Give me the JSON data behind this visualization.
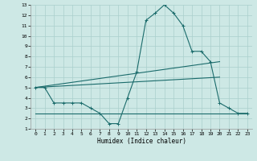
{
  "xlabel": "Humidex (Indice chaleur)",
  "background_color": "#cde8e5",
  "grid_color": "#aacfcc",
  "line_color": "#1a6b6b",
  "xlim": [
    -0.5,
    23.5
  ],
  "ylim": [
    1,
    13
  ],
  "xticks": [
    0,
    1,
    2,
    3,
    4,
    5,
    6,
    7,
    8,
    9,
    10,
    11,
    12,
    13,
    14,
    15,
    16,
    17,
    18,
    19,
    20,
    21,
    22,
    23
  ],
  "yticks": [
    1,
    2,
    3,
    4,
    5,
    6,
    7,
    8,
    9,
    10,
    11,
    12,
    13
  ],
  "series": [
    {
      "x": [
        0,
        1,
        2,
        3,
        4,
        5,
        6,
        7,
        8,
        9,
        10,
        11,
        12,
        13,
        14,
        15,
        16,
        17,
        18,
        19,
        20,
        21,
        22,
        23
      ],
      "y": [
        5,
        5,
        3.5,
        3.5,
        3.5,
        3.5,
        3,
        2.5,
        1.5,
        1.5,
        4,
        6.5,
        11.5,
        12.2,
        13,
        12.2,
        11,
        8.5,
        8.5,
        7.5,
        3.5,
        3,
        2.5,
        2.5
      ],
      "marker": true
    },
    {
      "x": [
        0,
        20
      ],
      "y": [
        5,
        7.5
      ],
      "marker": false
    },
    {
      "x": [
        0,
        20
      ],
      "y": [
        5,
        6
      ],
      "marker": false
    },
    {
      "x": [
        0,
        23
      ],
      "y": [
        2.5,
        2.5
      ],
      "marker": false
    }
  ]
}
